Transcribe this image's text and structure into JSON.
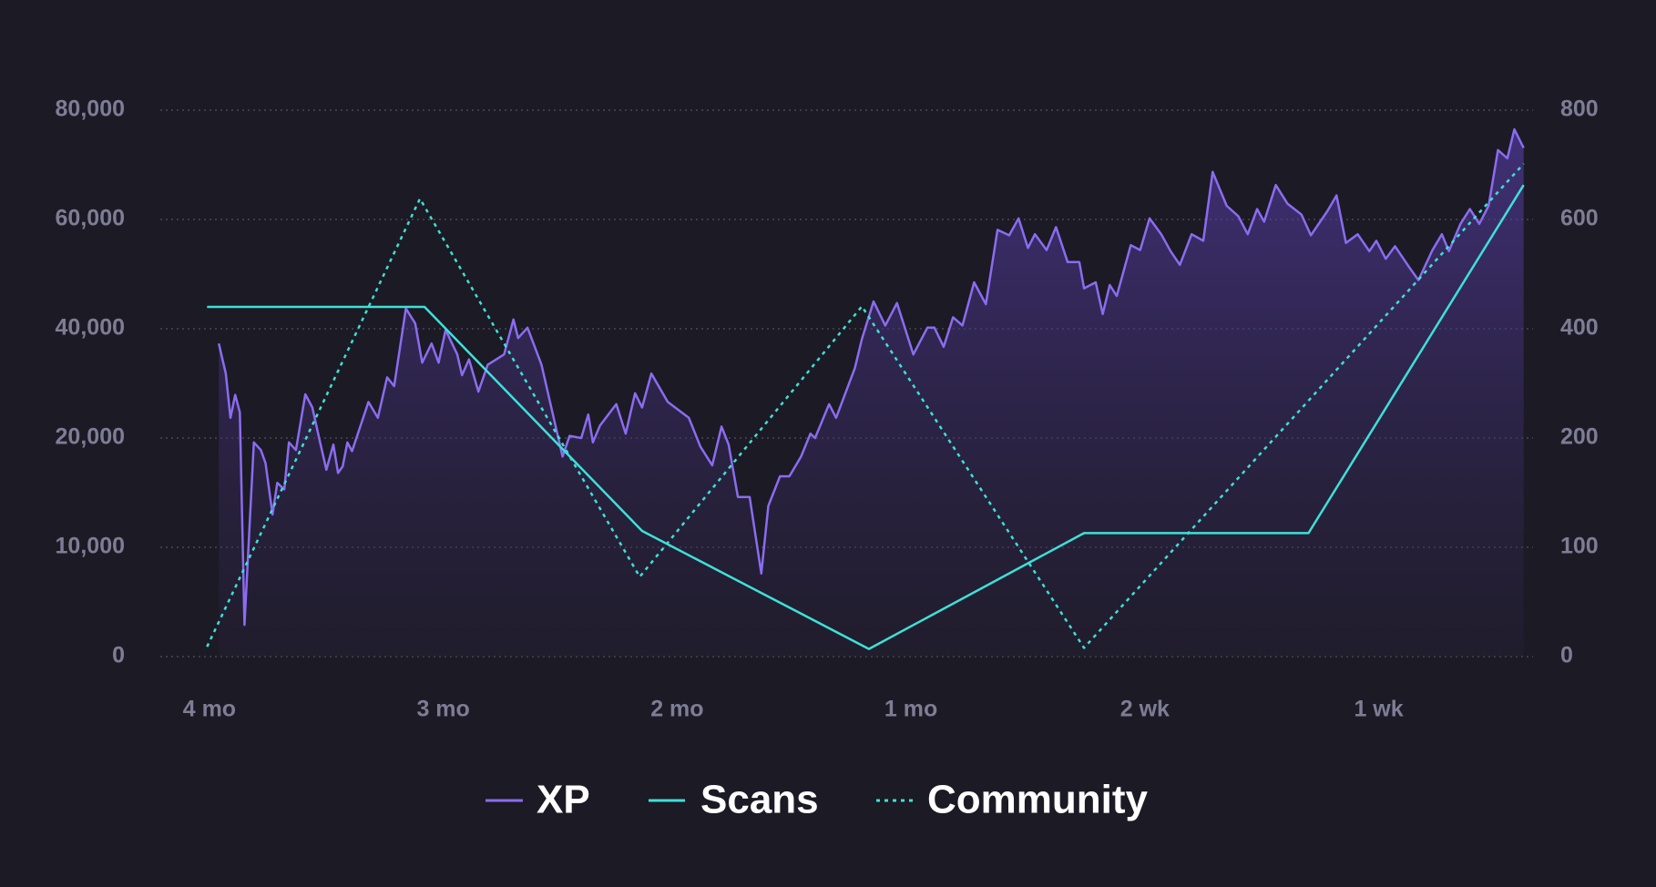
{
  "chart_data": {
    "type": "line",
    "xlim": [
      -0.21,
      5.66
    ],
    "xticks": [
      {
        "value": 0,
        "label": "4 mo"
      },
      {
        "value": 1,
        "label": "3 mo"
      },
      {
        "value": 2,
        "label": "2 mo"
      },
      {
        "value": 3,
        "label": "1 mo"
      },
      {
        "value": 4,
        "label": "2 wk"
      },
      {
        "value": 5,
        "label": "1 wk"
      }
    ],
    "ylim": [
      0,
      80000
    ],
    "yticks": [
      0,
      {
        "value": 10000,
        "label": "10,000"
      },
      {
        "value": 20000,
        "label": "20,000"
      },
      {
        "value": 40000,
        "label": "40,000"
      },
      {
        "value": 60000,
        "label": "60,000"
      },
      {
        "value": 80000,
        "label": "80,000"
      }
    ],
    "y2lim": [
      0,
      800
    ],
    "y2ticks": [
      0,
      100,
      200,
      400,
      600,
      800
    ],
    "yscale": "piecewise",
    "grid": true,
    "legend": "bottom",
    "series": [
      {
        "name": "XP",
        "color": "#8b6cf0",
        "area": true,
        "x": [
          0.04,
          0.07,
          0.09,
          0.11,
          0.13,
          0.15,
          0.19,
          0.22,
          0.24,
          0.27,
          0.29,
          0.32,
          0.34,
          0.37,
          0.41,
          0.44,
          0.47,
          0.5,
          0.53,
          0.55,
          0.57,
          0.59,
          0.61,
          0.68,
          0.72,
          0.76,
          0.79,
          0.84,
          0.88,
          0.91,
          0.95,
          0.98,
          1.01,
          1.06,
          1.08,
          1.11,
          1.15,
          1.19,
          1.26,
          1.3,
          1.32,
          1.36,
          1.42,
          1.51,
          1.54,
          1.59,
          1.62,
          1.64,
          1.67,
          1.74,
          1.78,
          1.82,
          1.85,
          1.89,
          1.96,
          2.05,
          2.1,
          2.15,
          2.19,
          2.22,
          2.26,
          2.31,
          2.36,
          2.39,
          2.44,
          2.48,
          2.53,
          2.57,
          2.59,
          2.65,
          2.68,
          2.76,
          2.79,
          2.84,
          2.89,
          2.94,
          3.01,
          3.07,
          3.1,
          3.14,
          3.18,
          3.22,
          3.27,
          3.32,
          3.37,
          3.42,
          3.46,
          3.5,
          3.53,
          3.58,
          3.62,
          3.67,
          3.72,
          3.74,
          3.79,
          3.82,
          3.85,
          3.88,
          3.94,
          3.98,
          4.02,
          4.07,
          4.11,
          4.15,
          4.2,
          4.25,
          4.29,
          4.35,
          4.4,
          4.44,
          4.48,
          4.51,
          4.56,
          4.61,
          4.67,
          4.71,
          4.78,
          4.82,
          4.86,
          4.91,
          4.96,
          4.99,
          5.03,
          5.07,
          5.13,
          5.17,
          5.23,
          5.27,
          5.3,
          5.35,
          5.39,
          5.43,
          5.47,
          5.51,
          5.55,
          5.58,
          5.62
        ],
        "values": [
          37300,
          31800,
          23700,
          27900,
          24700,
          2900,
          19600,
          18900,
          17700,
          13000,
          15900,
          15300,
          19600,
          18900,
          28000,
          25600,
          19900,
          17100,
          19400,
          16800,
          17400,
          19600,
          18800,
          26600,
          23700,
          31100,
          29500,
          43700,
          41000,
          33800,
          37300,
          33800,
          39800,
          35300,
          31500,
          34400,
          28500,
          33400,
          35300,
          41700,
          38300,
          40200,
          33400,
          18300,
          20400,
          20000,
          24300,
          19600,
          22300,
          26200,
          20800,
          28200,
          25600,
          31800,
          26600,
          23700,
          19200,
          17500,
          22100,
          19400,
          14600,
          14600,
          7600,
          13800,
          16500,
          16500,
          18300,
          20800,
          20000,
          26200,
          23700,
          32800,
          38100,
          45000,
          40600,
          44700,
          35300,
          40200,
          40200,
          36700,
          42100,
          40600,
          48500,
          44500,
          58100,
          57100,
          60200,
          54800,
          57300,
          54400,
          58600,
          52200,
          52200,
          47400,
          48500,
          42700,
          48000,
          46000,
          55300,
          54400,
          60200,
          57300,
          54200,
          51700,
          57300,
          56100,
          68700,
          62500,
          60600,
          57300,
          61900,
          59600,
          66300,
          62900,
          60900,
          57100,
          61500,
          64400,
          55700,
          57300,
          54200,
          56100,
          52800,
          55100,
          51300,
          48900,
          54400,
          57300,
          54200,
          59200,
          61900,
          59200,
          62500,
          72700,
          71200,
          76500,
          73100
        ]
      },
      {
        "name": "Scans",
        "color": "#3ee0d8",
        "axis": "y2",
        "x": [
          -0.01,
          0.92,
          1.85,
          2.82,
          3.74,
          4.7,
          5.62
        ],
        "values": [
          440,
          440,
          115,
          7,
          113,
          113,
          663
        ]
      },
      {
        "name": "Community",
        "color": "#3ee0d8",
        "axis": "y2",
        "dash": true,
        "x": [
          -0.01,
          0.9,
          1.84,
          2.79,
          3.74,
          5.62
        ],
        "values": [
          9,
          638,
          73,
          441,
          8,
          702
        ]
      }
    ]
  }
}
